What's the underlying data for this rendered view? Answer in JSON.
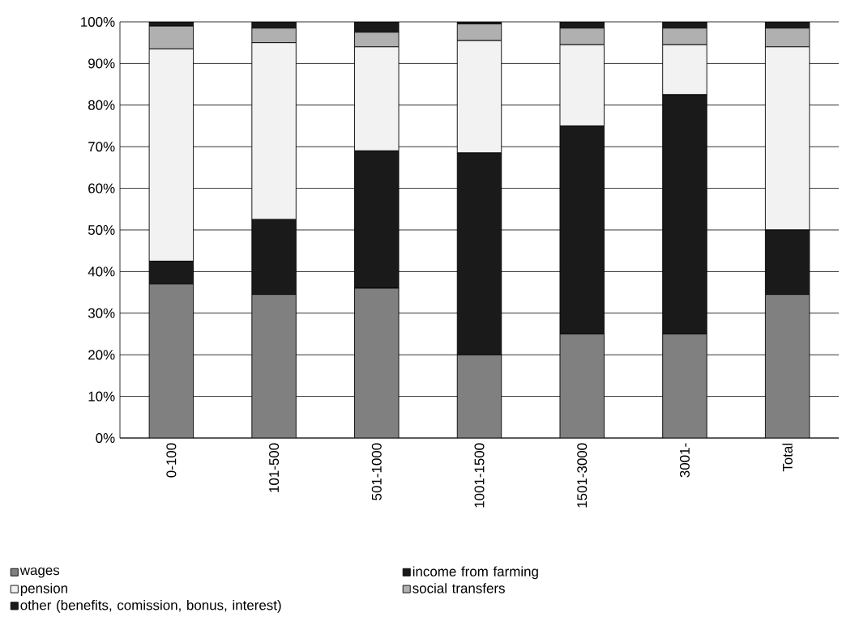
{
  "chart_data": {
    "type": "bar",
    "stacked": true,
    "categories": [
      "0-100",
      "101-500",
      "501-1000",
      "1001-1500",
      "1501-3000",
      "3001-",
      "Total"
    ],
    "series": [
      {
        "name": "wages",
        "color": "#808080",
        "values": [
          37,
          34.5,
          36,
          20,
          25,
          25,
          34.5
        ]
      },
      {
        "name": "income from farming",
        "color": "#1a1a1a",
        "values": [
          5.5,
          18,
          33,
          48.5,
          50,
          57.5,
          15.5
        ]
      },
      {
        "name": "pension",
        "color": "#f2f2f2",
        "values": [
          51,
          42.5,
          25,
          27,
          19.5,
          12,
          44
        ]
      },
      {
        "name": "social transfers",
        "color": "#b0b0b0",
        "values": [
          5.5,
          3.5,
          3.5,
          4,
          4,
          4,
          4.5
        ]
      },
      {
        "name": "other (benefits, comission, bonus, interest)",
        "color": "#1a1a1a",
        "values": [
          1,
          1.5,
          2.5,
          0.5,
          1.5,
          1.5,
          1.5
        ]
      }
    ],
    "ylim": [
      0,
      100
    ],
    "yticks": [
      {
        "value": 0,
        "label": "0%"
      },
      {
        "value": 10,
        "label": "10%"
      },
      {
        "value": 20,
        "label": "20%"
      },
      {
        "value": 30,
        "label": "30%"
      },
      {
        "value": 40,
        "label": "40%"
      },
      {
        "value": 50,
        "label": "50%"
      },
      {
        "value": 60,
        "label": "60%"
      },
      {
        "value": 70,
        "label": "70%"
      },
      {
        "value": 80,
        "label": "80%"
      },
      {
        "value": 90,
        "label": "90%"
      },
      {
        "value": 100,
        "label": "100%"
      }
    ],
    "grid": "y",
    "legend": "bottom"
  }
}
